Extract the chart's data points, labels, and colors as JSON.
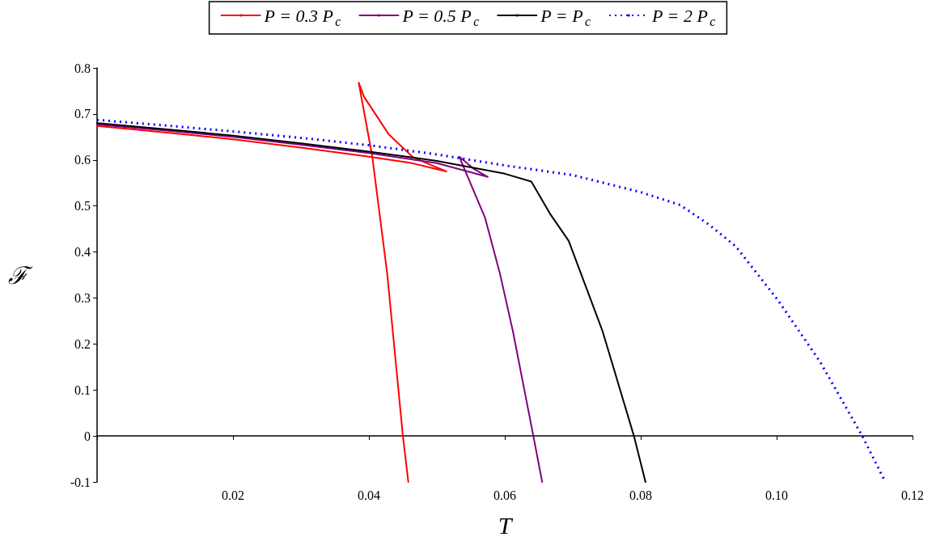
{
  "chart_data": {
    "type": "line",
    "xlabel": "T",
    "ylabel": "ℱ",
    "xlim": [
      0,
      0.12
    ],
    "ylim": [
      -0.1,
      0.8
    ],
    "xticks": [
      {
        "value": 0,
        "label": null
      },
      0.02,
      0.04,
      0.06,
      0.08,
      {
        "value": 0.1,
        "label": "0.10"
      },
      0.12
    ],
    "yticks": [
      -0.1,
      0,
      0.1,
      0.2,
      0.3,
      0.4,
      0.5,
      0.6,
      0.7,
      0.8
    ],
    "legend": "top",
    "marker": "none",
    "series": [
      {
        "name": "P = 0.3 P$_{c}$",
        "color": "#ff0000",
        "line_style": "solid",
        "x": [
          0,
          0.01,
          0.02,
          0.03,
          0.04,
          0.046,
          0.0514,
          0.0488,
          0.0464,
          0.0429,
          0.0393,
          0.0385,
          0.0405,
          0.0427,
          0.045,
          0.0458
        ],
        "values": [
          0.674,
          0.66,
          0.645,
          0.627,
          0.607,
          0.594,
          0.575,
          0.591,
          0.607,
          0.656,
          0.737,
          0.768,
          0.607,
          0.352,
          0,
          -0.1
        ]
      },
      {
        "name": "P = 0.5 P$_{c}$",
        "color": "#800080",
        "line_style": "solid",
        "x": [
          0,
          0.01,
          0.02,
          0.03,
          0.04,
          0.05,
          0.0575,
          0.0555,
          0.0533,
          0.0571,
          0.0593,
          0.0612,
          0.0642,
          0.0655
        ],
        "values": [
          0.677,
          0.664,
          0.65,
          0.633,
          0.615,
          0.593,
          0.563,
          0.58,
          0.607,
          0.474,
          0.352,
          0.227,
          0,
          -0.1
        ]
      },
      {
        "name": "P = P$_{c}$",
        "color": "#000000",
        "line_style": "solid",
        "x": [
          0,
          0.01,
          0.02,
          0.03,
          0.04,
          0.05,
          0.06,
          0.0639,
          0.0667,
          0.0694,
          0.0744,
          0.079,
          0.0807
        ],
        "values": [
          0.68,
          0.667,
          0.653,
          0.636,
          0.618,
          0.598,
          0.57,
          0.553,
          0.482,
          0.424,
          0.227,
          0,
          -0.1
        ]
      },
      {
        "name": "P = 2 P$_{c}$",
        "color": "#0000ff",
        "line_style": "dotted",
        "x": [
          0,
          0.01,
          0.02,
          0.03,
          0.04,
          0.05,
          0.06,
          0.07,
          0.08,
          0.0858,
          0.09,
          0.094,
          0.1002,
          0.1064,
          0.1126,
          0.116
        ],
        "values": [
          0.687,
          0.675,
          0.662,
          0.648,
          0.632,
          0.612,
          0.588,
          0.567,
          0.53,
          0.502,
          0.46,
          0.412,
          0.295,
          0.161,
          0,
          -0.1
        ]
      }
    ]
  }
}
